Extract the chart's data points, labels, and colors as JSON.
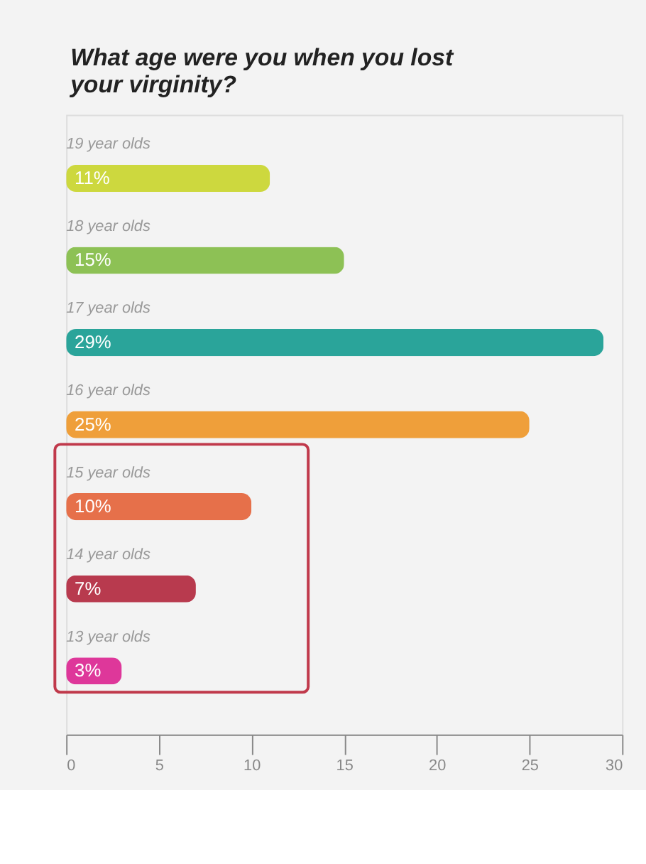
{
  "chart_data": {
    "type": "bar",
    "orientation": "horizontal",
    "title": "What age were you when you lost your virginity?",
    "categories": [
      "19 year olds",
      "18 year olds",
      "17 year olds",
      "16 year olds",
      "15 year olds",
      "14 year olds",
      "13 year olds"
    ],
    "values": [
      11,
      15,
      29,
      25,
      10,
      7,
      3
    ],
    "colors": [
      "#cdd83e",
      "#8dc155",
      "#2aa49a",
      "#ef9f3a",
      "#e6704a",
      "#b83a4e",
      "#de379a"
    ],
    "value_labels": [
      "11%",
      "15%",
      "29%",
      "25%",
      "10%",
      "7%",
      "3%"
    ],
    "xlim": [
      0,
      30
    ],
    "xticks": [
      0,
      5,
      10,
      15,
      20,
      25,
      30
    ],
    "grid": false
  }
}
